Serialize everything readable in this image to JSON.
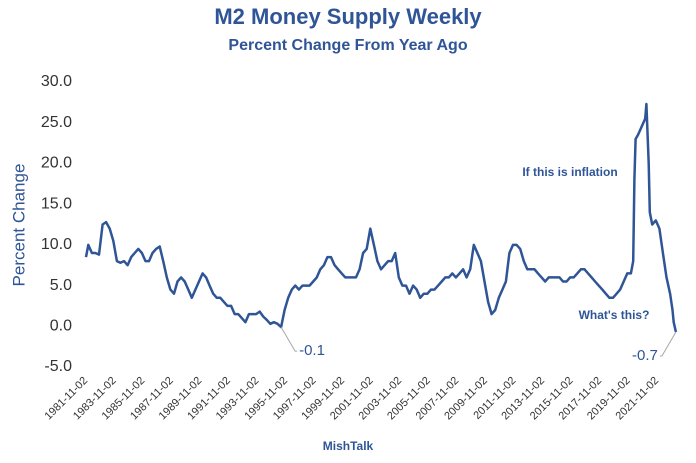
{
  "chart_data": {
    "type": "line",
    "title": "M2 Money Supply Weekly",
    "subtitle": "Percent Change From Year Ago",
    "y_label": "Percent Change",
    "footer": "MishTalk",
    "annotations": [
      "If this is inflation",
      "What's this?"
    ],
    "xlim": [
      "1981-11-02",
      "2023-03-01"
    ],
    "xticks": [
      "1981-11-02",
      "1983-11-02",
      "1985-11-02",
      "1987-11-02",
      "1989-11-02",
      "1991-11-02",
      "1993-11-02",
      "1995-11-02",
      "1997-11-02",
      "1999-11-02",
      "2001-11-02",
      "2003-11-02",
      "2005-11-02",
      "2007-11-02",
      "2009-11-02",
      "2011-11-02",
      "2013-11-02",
      "2015-11-02",
      "2017-11-02",
      "2019-11-02",
      "2021-11-02"
    ],
    "ylim": [
      -5,
      30
    ],
    "yticks": [
      {
        "value": -5,
        "label": "-5.0"
      },
      {
        "value": 0,
        "label": "0.0"
      },
      {
        "value": 5,
        "label": "5.0"
      },
      {
        "value": 10,
        "label": "10.0"
      },
      {
        "value": 15,
        "label": "15.0"
      },
      {
        "value": 20,
        "label": "20.0"
      },
      {
        "value": 25,
        "label": "25.0"
      },
      {
        "value": 30,
        "label": "30.0"
      }
    ],
    "x": [
      "1981-11-02",
      "1982-01-01",
      "1982-04-01",
      "1982-07-01",
      "1982-10-01",
      "1983-01-01",
      "1983-04-01",
      "1983-07-01",
      "1983-10-01",
      "1984-01-01",
      "1984-04-01",
      "1984-07-01",
      "1984-10-01",
      "1985-01-01",
      "1985-04-01",
      "1985-07-01",
      "1985-10-01",
      "1986-01-01",
      "1986-04-01",
      "1986-07-01",
      "1986-10-01",
      "1987-01-01",
      "1987-04-01",
      "1987-07-01",
      "1987-10-01",
      "1988-01-01",
      "1988-04-01",
      "1988-07-01",
      "1988-10-01",
      "1989-01-01",
      "1989-04-01",
      "1989-07-01",
      "1989-10-01",
      "1990-01-01",
      "1990-04-01",
      "1990-07-01",
      "1990-10-01",
      "1991-01-01",
      "1991-04-01",
      "1991-07-01",
      "1991-10-01",
      "1992-01-01",
      "1992-04-01",
      "1992-07-01",
      "1992-10-01",
      "1993-01-01",
      "1993-04-01",
      "1993-07-01",
      "1993-10-01",
      "1994-01-01",
      "1994-04-01",
      "1994-07-01",
      "1994-10-01",
      "1995-01-01",
      "1995-04-01",
      "1995-07-03",
      "1995-10-01",
      "1996-01-01",
      "1996-04-01",
      "1996-07-01",
      "1996-10-01",
      "1997-01-01",
      "1997-04-01",
      "1997-07-01",
      "1997-10-01",
      "1998-01-01",
      "1998-04-01",
      "1998-07-01",
      "1998-10-01",
      "1999-01-01",
      "1999-04-01",
      "1999-07-01",
      "1999-10-01",
      "2000-01-01",
      "2000-04-01",
      "2000-07-01",
      "2000-10-01",
      "2001-01-01",
      "2001-04-01",
      "2001-07-01",
      "2001-10-01",
      "2002-01-01",
      "2002-04-01",
      "2002-07-01",
      "2002-10-01",
      "2003-01-01",
      "2003-04-01",
      "2003-07-01",
      "2003-10-01",
      "2004-01-01",
      "2004-04-01",
      "2004-07-01",
      "2004-10-01",
      "2005-01-01",
      "2005-04-01",
      "2005-07-01",
      "2005-10-01",
      "2006-01-01",
      "2006-04-01",
      "2006-07-01",
      "2006-10-01",
      "2007-01-01",
      "2007-04-01",
      "2007-07-01",
      "2007-10-01",
      "2008-01-01",
      "2008-04-01",
      "2008-07-01",
      "2008-10-01",
      "2009-01-01",
      "2009-04-01",
      "2009-07-01",
      "2009-10-01",
      "2010-01-01",
      "2010-04-01",
      "2010-07-01",
      "2010-10-01",
      "2011-01-01",
      "2011-04-01",
      "2011-07-01",
      "2011-10-01",
      "2012-01-01",
      "2012-04-01",
      "2012-07-01",
      "2012-10-01",
      "2013-01-01",
      "2013-04-01",
      "2013-07-01",
      "2013-10-01",
      "2014-01-01",
      "2014-04-01",
      "2014-07-01",
      "2014-10-01",
      "2015-01-01",
      "2015-04-01",
      "2015-07-01",
      "2015-10-01",
      "2016-01-01",
      "2016-04-01",
      "2016-07-01",
      "2016-10-01",
      "2017-01-01",
      "2017-04-01",
      "2017-07-01",
      "2017-10-01",
      "2018-01-01",
      "2018-04-01",
      "2018-07-01",
      "2018-10-01",
      "2019-01-01",
      "2019-04-01",
      "2019-07-01",
      "2019-10-01",
      "2020-01-01",
      "2020-03-01",
      "2020-04-01",
      "2020-05-01",
      "2020-07-01",
      "2020-10-01",
      "2021-01-01",
      "2021-02-01",
      "2021-04-01",
      "2021-05-01",
      "2021-07-01",
      "2021-10-01",
      "2022-01-01",
      "2022-04-01",
      "2022-07-01",
      "2022-10-01",
      "2022-12-01",
      "2023-01-01",
      "2023-02-27"
    ],
    "series": [
      {
        "name": "M2",
        "color": "#2f5597",
        "values": [
          8.5,
          10,
          9,
          9,
          8.8,
          12.5,
          12.8,
          12,
          10.5,
          8,
          7.8,
          8,
          7.5,
          8.5,
          9,
          9.5,
          9,
          8,
          8,
          9,
          9.5,
          9.8,
          8,
          6,
          4.5,
          4,
          5.5,
          6,
          5.5,
          4.5,
          3.5,
          4.5,
          5.5,
          6.5,
          6,
          5,
          4,
          3.5,
          3.5,
          3,
          2.5,
          2.5,
          1.5,
          1.5,
          1,
          0.5,
          1.5,
          1.5,
          1.5,
          1.8,
          1.2,
          0.8,
          0.3,
          0.5,
          0.3,
          -0.1,
          2,
          3.5,
          4.5,
          5,
          4.5,
          5,
          5,
          5,
          5.5,
          6,
          7,
          7.5,
          8.5,
          8.5,
          7.5,
          7,
          6.5,
          6,
          6,
          6,
          6,
          7,
          9,
          9.5,
          12,
          10,
          8,
          7,
          7.5,
          8,
          8,
          9,
          6,
          5,
          5,
          4,
          5,
          4.5,
          3.5,
          4,
          4,
          4.5,
          4.5,
          5,
          5.5,
          6,
          6,
          6.5,
          6,
          6.5,
          7,
          6,
          7,
          10,
          9,
          8,
          5.5,
          3,
          1.5,
          2,
          3.5,
          4.5,
          5.5,
          9,
          10,
          10,
          9.5,
          8,
          7,
          7,
          7,
          6.5,
          6,
          5.5,
          6,
          6,
          6,
          6,
          5.5,
          5.5,
          6,
          6,
          6.5,
          7,
          7,
          6.5,
          6,
          5.5,
          5,
          4.5,
          4,
          3.5,
          3.5,
          4,
          4.5,
          5.5,
          6.5,
          6.5,
          8,
          18,
          23,
          23.5,
          24.5,
          25.5,
          27.3,
          20,
          14,
          12.5,
          13,
          12,
          9,
          6,
          4,
          2,
          0.5,
          -0.7
        ],
        "value_labels": [
          null,
          null,
          null,
          null,
          null,
          null,
          null,
          null,
          null,
          null,
          null,
          null,
          null,
          null,
          null,
          null,
          null,
          null,
          null,
          null,
          null,
          null,
          null,
          null,
          null,
          null,
          null,
          null,
          null,
          null,
          null,
          null,
          null,
          null,
          null,
          null,
          null,
          null,
          null,
          null,
          null,
          null,
          null,
          null,
          null,
          null,
          null,
          null,
          null,
          null,
          null,
          null,
          null,
          null,
          null,
          "-0.1",
          null,
          null,
          null,
          null,
          null,
          null,
          null,
          null,
          null,
          null,
          null,
          null,
          null,
          null,
          null,
          null,
          null,
          null,
          null,
          null,
          null,
          null,
          null,
          null,
          null,
          null,
          null,
          null,
          null,
          null,
          null,
          null,
          null,
          null,
          null,
          null,
          null,
          null,
          null,
          null,
          null,
          null,
          null,
          null,
          null,
          null,
          null,
          null,
          null,
          null,
          null,
          null,
          null,
          null,
          null,
          null,
          null,
          null,
          null,
          null,
          null,
          null,
          null,
          null,
          null,
          null,
          null,
          null,
          null,
          null,
          null,
          null,
          null,
          null,
          null,
          null,
          null,
          null,
          null,
          null,
          null,
          null,
          null,
          null,
          null,
          null,
          null,
          null,
          null,
          null,
          null,
          null,
          null,
          null,
          null,
          null,
          null,
          null,
          null,
          null,
          null,
          null,
          null,
          null,
          null,
          null,
          null,
          null,
          null,
          null,
          null,
          null,
          null,
          null,
          null,
          "-0.7"
        ]
      }
    ]
  }
}
